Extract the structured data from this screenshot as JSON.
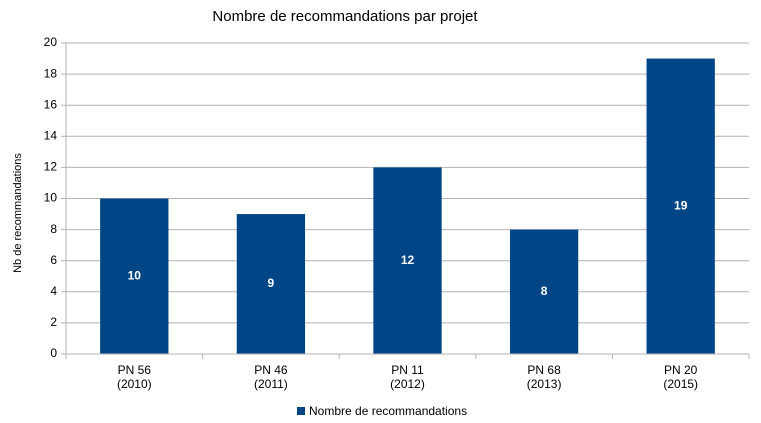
{
  "chart_data": {
    "type": "bar",
    "title": "Nombre de recommandations par projet",
    "y_label": "Nb de recommandations",
    "categories": [
      "PN 56\n(2010)",
      "PN 46\n(2011)",
      "PN 11\n(2012)",
      "PN 68\n(2013)",
      "PN 20\n(2015)"
    ],
    "series": [
      {
        "name": "Nombre de recommandations",
        "color": "#004586",
        "values": [
          10,
          9,
          12,
          8,
          19
        ]
      }
    ],
    "ylim": [
      0,
      20
    ],
    "yticks": [
      0,
      2,
      4,
      6,
      8,
      10,
      12,
      14,
      16,
      18,
      20
    ],
    "grid": true,
    "legend": "bottom"
  }
}
